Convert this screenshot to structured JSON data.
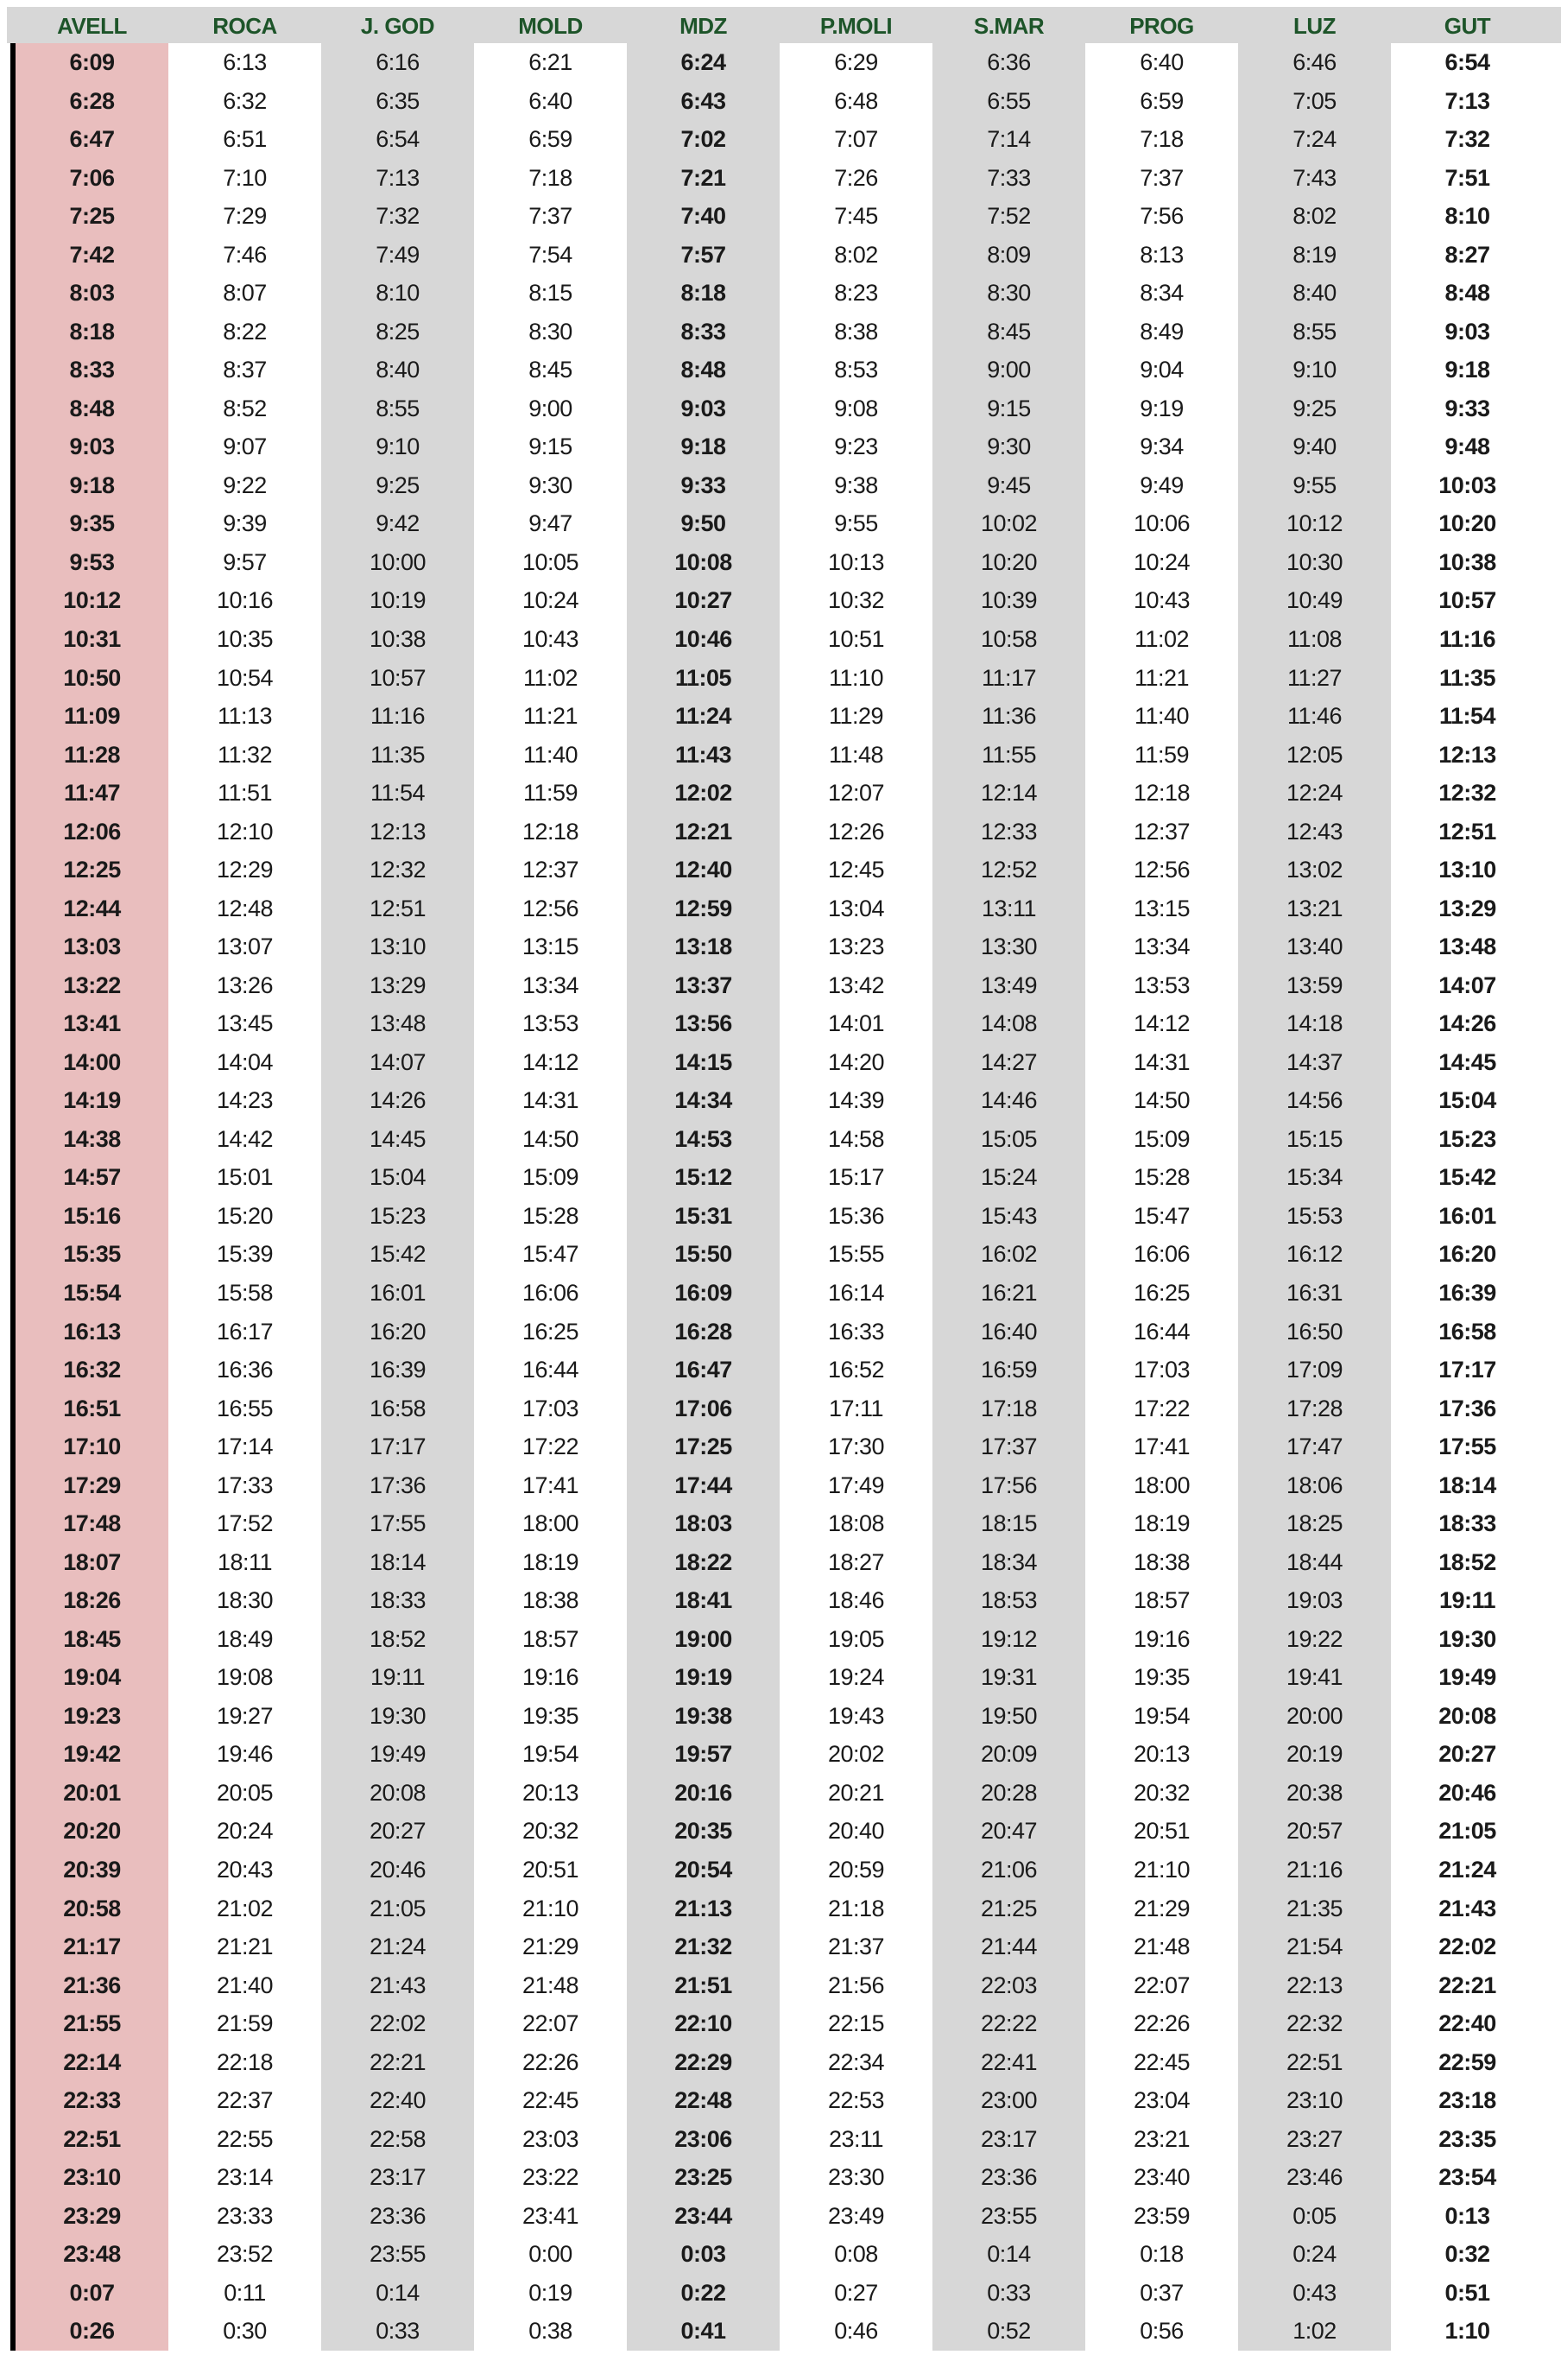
{
  "table": {
    "colors": {
      "header_bg": "#d7d7d7",
      "header_text": "#1d5429",
      "stripe_gray": "#d7d7d7",
      "stripe_pink": "#e9bebe",
      "left_bar": "#000000",
      "time_text": "#1a1a1a"
    },
    "columns": [
      {
        "label": "AVELL",
        "bg": "pink",
        "bold": true
      },
      {
        "label": "ROCA",
        "bg": "white",
        "bold": false
      },
      {
        "label": "J. GOD",
        "bg": "gray",
        "bold": false
      },
      {
        "label": "MOLD",
        "bg": "white",
        "bold": false
      },
      {
        "label": "MDZ",
        "bg": "gray",
        "bold": true
      },
      {
        "label": "P.MOLI",
        "bg": "white",
        "bold": false
      },
      {
        "label": "S.MAR",
        "bg": "gray",
        "bold": false
      },
      {
        "label": "PROG",
        "bg": "white",
        "bold": false
      },
      {
        "label": "LUZ",
        "bg": "gray",
        "bold": false
      },
      {
        "label": "GUT",
        "bg": "white",
        "bold": true
      }
    ],
    "rows": [
      [
        "6:09",
        "6:13",
        "6:16",
        "6:21",
        "6:24",
        "6:29",
        "6:36",
        "6:40",
        "6:46",
        "6:54"
      ],
      [
        "6:28",
        "6:32",
        "6:35",
        "6:40",
        "6:43",
        "6:48",
        "6:55",
        "6:59",
        "7:05",
        "7:13"
      ],
      [
        "6:47",
        "6:51",
        "6:54",
        "6:59",
        "7:02",
        "7:07",
        "7:14",
        "7:18",
        "7:24",
        "7:32"
      ],
      [
        "7:06",
        "7:10",
        "7:13",
        "7:18",
        "7:21",
        "7:26",
        "7:33",
        "7:37",
        "7:43",
        "7:51"
      ],
      [
        "7:25",
        "7:29",
        "7:32",
        "7:37",
        "7:40",
        "7:45",
        "7:52",
        "7:56",
        "8:02",
        "8:10"
      ],
      [
        "7:42",
        "7:46",
        "7:49",
        "7:54",
        "7:57",
        "8:02",
        "8:09",
        "8:13",
        "8:19",
        "8:27"
      ],
      [
        "8:03",
        "8:07",
        "8:10",
        "8:15",
        "8:18",
        "8:23",
        "8:30",
        "8:34",
        "8:40",
        "8:48"
      ],
      [
        "8:18",
        "8:22",
        "8:25",
        "8:30",
        "8:33",
        "8:38",
        "8:45",
        "8:49",
        "8:55",
        "9:03"
      ],
      [
        "8:33",
        "8:37",
        "8:40",
        "8:45",
        "8:48",
        "8:53",
        "9:00",
        "9:04",
        "9:10",
        "9:18"
      ],
      [
        "8:48",
        "8:52",
        "8:55",
        "9:00",
        "9:03",
        "9:08",
        "9:15",
        "9:19",
        "9:25",
        "9:33"
      ],
      [
        "9:03",
        "9:07",
        "9:10",
        "9:15",
        "9:18",
        "9:23",
        "9:30",
        "9:34",
        "9:40",
        "9:48"
      ],
      [
        "9:18",
        "9:22",
        "9:25",
        "9:30",
        "9:33",
        "9:38",
        "9:45",
        "9:49",
        "9:55",
        "10:03"
      ],
      [
        "9:35",
        "9:39",
        "9:42",
        "9:47",
        "9:50",
        "9:55",
        "10:02",
        "10:06",
        "10:12",
        "10:20"
      ],
      [
        "9:53",
        "9:57",
        "10:00",
        "10:05",
        "10:08",
        "10:13",
        "10:20",
        "10:24",
        "10:30",
        "10:38"
      ],
      [
        "10:12",
        "10:16",
        "10:19",
        "10:24",
        "10:27",
        "10:32",
        "10:39",
        "10:43",
        "10:49",
        "10:57"
      ],
      [
        "10:31",
        "10:35",
        "10:38",
        "10:43",
        "10:46",
        "10:51",
        "10:58",
        "11:02",
        "11:08",
        "11:16"
      ],
      [
        "10:50",
        "10:54",
        "10:57",
        "11:02",
        "11:05",
        "11:10",
        "11:17",
        "11:21",
        "11:27",
        "11:35"
      ],
      [
        "11:09",
        "11:13",
        "11:16",
        "11:21",
        "11:24",
        "11:29",
        "11:36",
        "11:40",
        "11:46",
        "11:54"
      ],
      [
        "11:28",
        "11:32",
        "11:35",
        "11:40",
        "11:43",
        "11:48",
        "11:55",
        "11:59",
        "12:05",
        "12:13"
      ],
      [
        "11:47",
        "11:51",
        "11:54",
        "11:59",
        "12:02",
        "12:07",
        "12:14",
        "12:18",
        "12:24",
        "12:32"
      ],
      [
        "12:06",
        "12:10",
        "12:13",
        "12:18",
        "12:21",
        "12:26",
        "12:33",
        "12:37",
        "12:43",
        "12:51"
      ],
      [
        "12:25",
        "12:29",
        "12:32",
        "12:37",
        "12:40",
        "12:45",
        "12:52",
        "12:56",
        "13:02",
        "13:10"
      ],
      [
        "12:44",
        "12:48",
        "12:51",
        "12:56",
        "12:59",
        "13:04",
        "13:11",
        "13:15",
        "13:21",
        "13:29"
      ],
      [
        "13:03",
        "13:07",
        "13:10",
        "13:15",
        "13:18",
        "13:23",
        "13:30",
        "13:34",
        "13:40",
        "13:48"
      ],
      [
        "13:22",
        "13:26",
        "13:29",
        "13:34",
        "13:37",
        "13:42",
        "13:49",
        "13:53",
        "13:59",
        "14:07"
      ],
      [
        "13:41",
        "13:45",
        "13:48",
        "13:53",
        "13:56",
        "14:01",
        "14:08",
        "14:12",
        "14:18",
        "14:26"
      ],
      [
        "14:00",
        "14:04",
        "14:07",
        "14:12",
        "14:15",
        "14:20",
        "14:27",
        "14:31",
        "14:37",
        "14:45"
      ],
      [
        "14:19",
        "14:23",
        "14:26",
        "14:31",
        "14:34",
        "14:39",
        "14:46",
        "14:50",
        "14:56",
        "15:04"
      ],
      [
        "14:38",
        "14:42",
        "14:45",
        "14:50",
        "14:53",
        "14:58",
        "15:05",
        "15:09",
        "15:15",
        "15:23"
      ],
      [
        "14:57",
        "15:01",
        "15:04",
        "15:09",
        "15:12",
        "15:17",
        "15:24",
        "15:28",
        "15:34",
        "15:42"
      ],
      [
        "15:16",
        "15:20",
        "15:23",
        "15:28",
        "15:31",
        "15:36",
        "15:43",
        "15:47",
        "15:53",
        "16:01"
      ],
      [
        "15:35",
        "15:39",
        "15:42",
        "15:47",
        "15:50",
        "15:55",
        "16:02",
        "16:06",
        "16:12",
        "16:20"
      ],
      [
        "15:54",
        "15:58",
        "16:01",
        "16:06",
        "16:09",
        "16:14",
        "16:21",
        "16:25",
        "16:31",
        "16:39"
      ],
      [
        "16:13",
        "16:17",
        "16:20",
        "16:25",
        "16:28",
        "16:33",
        "16:40",
        "16:44",
        "16:50",
        "16:58"
      ],
      [
        "16:32",
        "16:36",
        "16:39",
        "16:44",
        "16:47",
        "16:52",
        "16:59",
        "17:03",
        "17:09",
        "17:17"
      ],
      [
        "16:51",
        "16:55",
        "16:58",
        "17:03",
        "17:06",
        "17:11",
        "17:18",
        "17:22",
        "17:28",
        "17:36"
      ],
      [
        "17:10",
        "17:14",
        "17:17",
        "17:22",
        "17:25",
        "17:30",
        "17:37",
        "17:41",
        "17:47",
        "17:55"
      ],
      [
        "17:29",
        "17:33",
        "17:36",
        "17:41",
        "17:44",
        "17:49",
        "17:56",
        "18:00",
        "18:06",
        "18:14"
      ],
      [
        "17:48",
        "17:52",
        "17:55",
        "18:00",
        "18:03",
        "18:08",
        "18:15",
        "18:19",
        "18:25",
        "18:33"
      ],
      [
        "18:07",
        "18:11",
        "18:14",
        "18:19",
        "18:22",
        "18:27",
        "18:34",
        "18:38",
        "18:44",
        "18:52"
      ],
      [
        "18:26",
        "18:30",
        "18:33",
        "18:38",
        "18:41",
        "18:46",
        "18:53",
        "18:57",
        "19:03",
        "19:11"
      ],
      [
        "18:45",
        "18:49",
        "18:52",
        "18:57",
        "19:00",
        "19:05",
        "19:12",
        "19:16",
        "19:22",
        "19:30"
      ],
      [
        "19:04",
        "19:08",
        "19:11",
        "19:16",
        "19:19",
        "19:24",
        "19:31",
        "19:35",
        "19:41",
        "19:49"
      ],
      [
        "19:23",
        "19:27",
        "19:30",
        "19:35",
        "19:38",
        "19:43",
        "19:50",
        "19:54",
        "20:00",
        "20:08"
      ],
      [
        "19:42",
        "19:46",
        "19:49",
        "19:54",
        "19:57",
        "20:02",
        "20:09",
        "20:13",
        "20:19",
        "20:27"
      ],
      [
        "20:01",
        "20:05",
        "20:08",
        "20:13",
        "20:16",
        "20:21",
        "20:28",
        "20:32",
        "20:38",
        "20:46"
      ],
      [
        "20:20",
        "20:24",
        "20:27",
        "20:32",
        "20:35",
        "20:40",
        "20:47",
        "20:51",
        "20:57",
        "21:05"
      ],
      [
        "20:39",
        "20:43",
        "20:46",
        "20:51",
        "20:54",
        "20:59",
        "21:06",
        "21:10",
        "21:16",
        "21:24"
      ],
      [
        "20:58",
        "21:02",
        "21:05",
        "21:10",
        "21:13",
        "21:18",
        "21:25",
        "21:29",
        "21:35",
        "21:43"
      ],
      [
        "21:17",
        "21:21",
        "21:24",
        "21:29",
        "21:32",
        "21:37",
        "21:44",
        "21:48",
        "21:54",
        "22:02"
      ],
      [
        "21:36",
        "21:40",
        "21:43",
        "21:48",
        "21:51",
        "21:56",
        "22:03",
        "22:07",
        "22:13",
        "22:21"
      ],
      [
        "21:55",
        "21:59",
        "22:02",
        "22:07",
        "22:10",
        "22:15",
        "22:22",
        "22:26",
        "22:32",
        "22:40"
      ],
      [
        "22:14",
        "22:18",
        "22:21",
        "22:26",
        "22:29",
        "22:34",
        "22:41",
        "22:45",
        "22:51",
        "22:59"
      ],
      [
        "22:33",
        "22:37",
        "22:40",
        "22:45",
        "22:48",
        "22:53",
        "23:00",
        "23:04",
        "23:10",
        "23:18"
      ],
      [
        "22:51",
        "22:55",
        "22:58",
        "23:03",
        "23:06",
        "23:11",
        "23:17",
        "23:21",
        "23:27",
        "23:35"
      ],
      [
        "23:10",
        "23:14",
        "23:17",
        "23:22",
        "23:25",
        "23:30",
        "23:36",
        "23:40",
        "23:46",
        "23:54"
      ],
      [
        "23:29",
        "23:33",
        "23:36",
        "23:41",
        "23:44",
        "23:49",
        "23:55",
        "23:59",
        "0:05",
        "0:13"
      ],
      [
        "23:48",
        "23:52",
        "23:55",
        "0:00",
        "0:03",
        "0:08",
        "0:14",
        "0:18",
        "0:24",
        "0:32"
      ],
      [
        "0:07",
        "0:11",
        "0:14",
        "0:19",
        "0:22",
        "0:27",
        "0:33",
        "0:37",
        "0:43",
        "0:51"
      ],
      [
        "0:26",
        "0:30",
        "0:33",
        "0:38",
        "0:41",
        "0:46",
        "0:52",
        "0:56",
        "1:02",
        "1:10"
      ]
    ]
  }
}
